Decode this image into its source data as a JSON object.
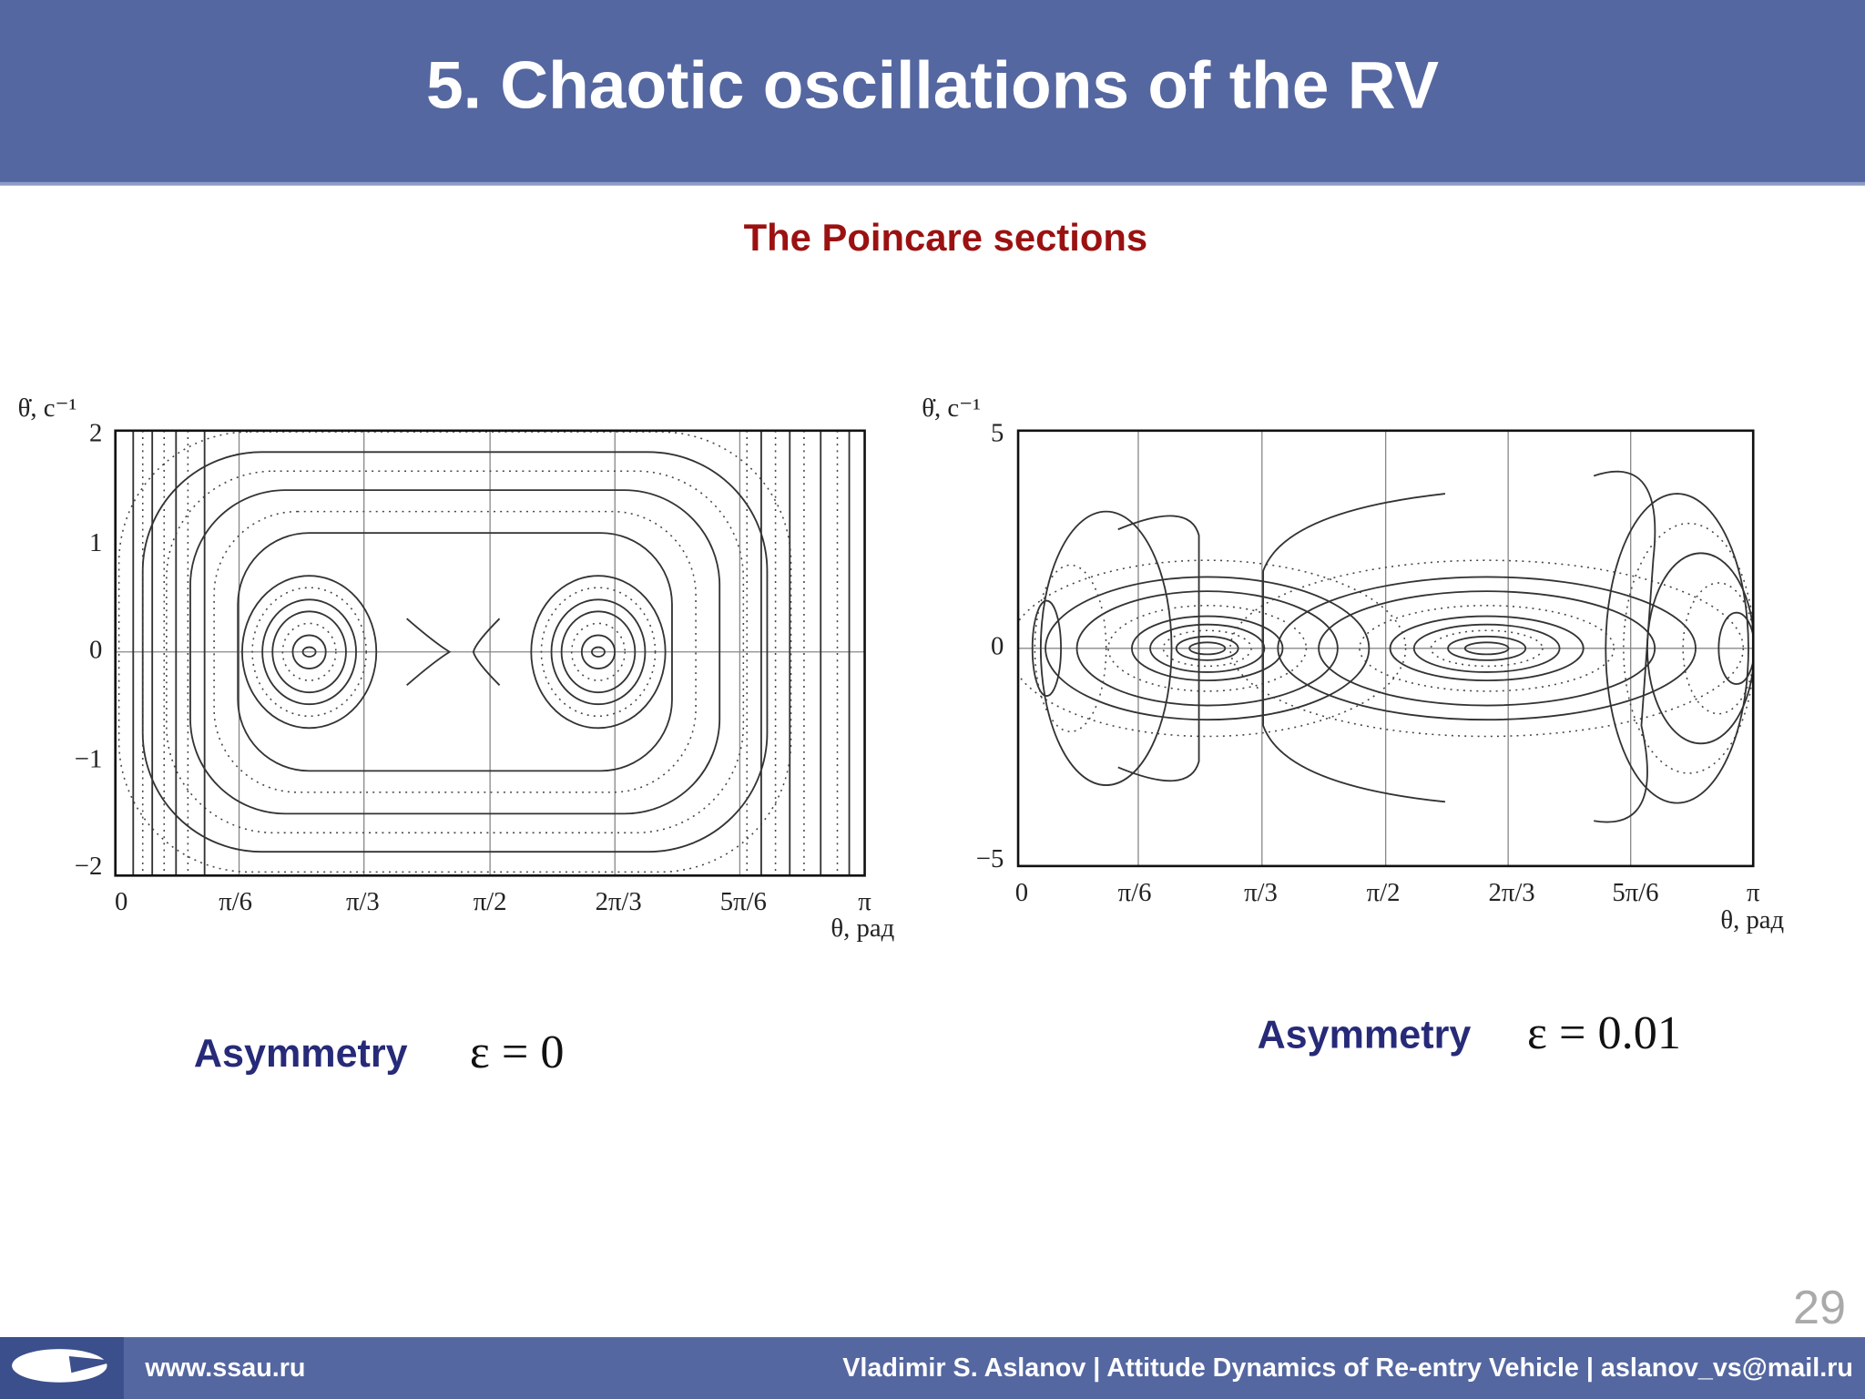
{
  "header": {
    "title": "5. Chaotic oscillations of the RV"
  },
  "subtitle": "The Poincare sections",
  "figures": [
    {
      "y_label": "θ̇, c⁻¹",
      "x_label": "θ, рад",
      "yticks": [
        "2",
        "1",
        "0",
        "−1",
        "−2"
      ],
      "xticks": [
        "0",
        "π/6",
        "π/3",
        "π/2",
        "2π/3",
        "5π/6",
        "π"
      ],
      "caption": {
        "label": "Asymmetry",
        "formula": "ε = 0"
      }
    },
    {
      "y_label": "θ̇, c⁻¹",
      "x_label": "θ, рад",
      "yticks": [
        "5",
        "0",
        "−5"
      ],
      "xticks": [
        "0",
        "π/6",
        "π/3",
        "π/2",
        "2π/3",
        "5π/6",
        "π"
      ],
      "caption": {
        "label": "Asymmetry",
        "formula": "ε = 0.01"
      }
    }
  ],
  "page_number": "29",
  "footer": {
    "url": "www.ssau.ru",
    "credits": "Vladimir S. Aslanov | Attitude Dynamics of Re-entry Vehicle |  aslanov_vs@mail.ru"
  }
}
